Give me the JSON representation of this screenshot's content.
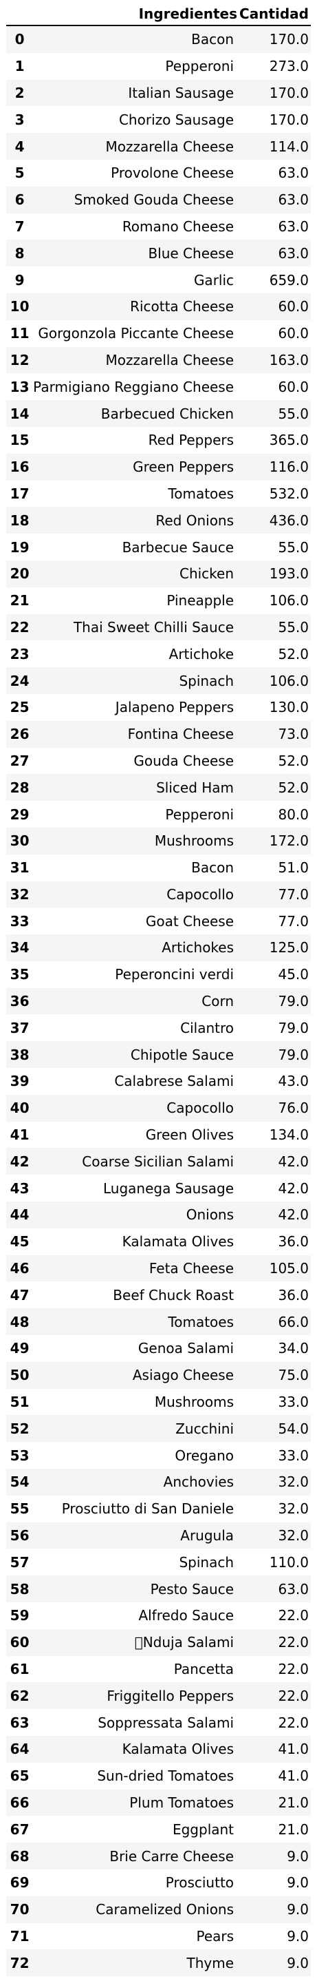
{
  "table": {
    "columns": [
      "Ingredientes",
      "Cantidad"
    ],
    "rows": [
      {
        "index": "0",
        "ingrediente": "Bacon",
        "cantidad": "170.0"
      },
      {
        "index": "1",
        "ingrediente": "Pepperoni",
        "cantidad": "273.0"
      },
      {
        "index": "2",
        "ingrediente": "Italian Sausage",
        "cantidad": "170.0"
      },
      {
        "index": "3",
        "ingrediente": "Chorizo Sausage",
        "cantidad": "170.0"
      },
      {
        "index": "4",
        "ingrediente": "Mozzarella Cheese",
        "cantidad": "114.0"
      },
      {
        "index": "5",
        "ingrediente": "Provolone Cheese",
        "cantidad": "63.0"
      },
      {
        "index": "6",
        "ingrediente": "Smoked Gouda Cheese",
        "cantidad": "63.0"
      },
      {
        "index": "7",
        "ingrediente": "Romano Cheese",
        "cantidad": "63.0"
      },
      {
        "index": "8",
        "ingrediente": "Blue Cheese",
        "cantidad": "63.0"
      },
      {
        "index": "9",
        "ingrediente": "Garlic",
        "cantidad": "659.0"
      },
      {
        "index": "10",
        "ingrediente": "Ricotta Cheese",
        "cantidad": "60.0"
      },
      {
        "index": "11",
        "ingrediente": "Gorgonzola Piccante Cheese",
        "cantidad": "60.0"
      },
      {
        "index": "12",
        "ingrediente": "Mozzarella Cheese",
        "cantidad": "163.0"
      },
      {
        "index": "13",
        "ingrediente": "Parmigiano Reggiano Cheese",
        "cantidad": "60.0"
      },
      {
        "index": "14",
        "ingrediente": "Barbecued Chicken",
        "cantidad": "55.0"
      },
      {
        "index": "15",
        "ingrediente": "Red Peppers",
        "cantidad": "365.0"
      },
      {
        "index": "16",
        "ingrediente": "Green Peppers",
        "cantidad": "116.0"
      },
      {
        "index": "17",
        "ingrediente": "Tomatoes",
        "cantidad": "532.0"
      },
      {
        "index": "18",
        "ingrediente": "Red Onions",
        "cantidad": "436.0"
      },
      {
        "index": "19",
        "ingrediente": "Barbecue Sauce",
        "cantidad": "55.0"
      },
      {
        "index": "20",
        "ingrediente": "Chicken",
        "cantidad": "193.0"
      },
      {
        "index": "21",
        "ingrediente": "Pineapple",
        "cantidad": "106.0"
      },
      {
        "index": "22",
        "ingrediente": "Thai Sweet Chilli Sauce",
        "cantidad": "55.0"
      },
      {
        "index": "23",
        "ingrediente": "Artichoke",
        "cantidad": "52.0"
      },
      {
        "index": "24",
        "ingrediente": "Spinach",
        "cantidad": "106.0"
      },
      {
        "index": "25",
        "ingrediente": "Jalapeno Peppers",
        "cantidad": "130.0"
      },
      {
        "index": "26",
        "ingrediente": "Fontina Cheese",
        "cantidad": "73.0"
      },
      {
        "index": "27",
        "ingrediente": "Gouda Cheese",
        "cantidad": "52.0"
      },
      {
        "index": "28",
        "ingrediente": "Sliced Ham",
        "cantidad": "52.0"
      },
      {
        "index": "29",
        "ingrediente": "Pepperoni",
        "cantidad": "80.0"
      },
      {
        "index": "30",
        "ingrediente": "Mushrooms",
        "cantidad": "172.0"
      },
      {
        "index": "31",
        "ingrediente": "Bacon",
        "cantidad": "51.0"
      },
      {
        "index": "32",
        "ingrediente": "Capocollo",
        "cantidad": "77.0"
      },
      {
        "index": "33",
        "ingrediente": "Goat Cheese",
        "cantidad": "77.0"
      },
      {
        "index": "34",
        "ingrediente": "Artichokes",
        "cantidad": "125.0"
      },
      {
        "index": "35",
        "ingrediente": "Peperoncini verdi",
        "cantidad": "45.0"
      },
      {
        "index": "36",
        "ingrediente": "Corn",
        "cantidad": "79.0"
      },
      {
        "index": "37",
        "ingrediente": "Cilantro",
        "cantidad": "79.0"
      },
      {
        "index": "38",
        "ingrediente": "Chipotle Sauce",
        "cantidad": "79.0"
      },
      {
        "index": "39",
        "ingrediente": "Calabrese Salami",
        "cantidad": "43.0"
      },
      {
        "index": "40",
        "ingrediente": "Capocollo",
        "cantidad": "76.0"
      },
      {
        "index": "41",
        "ingrediente": "Green Olives",
        "cantidad": "134.0"
      },
      {
        "index": "42",
        "ingrediente": "Coarse Sicilian Salami",
        "cantidad": "42.0"
      },
      {
        "index": "43",
        "ingrediente": "Luganega Sausage",
        "cantidad": "42.0"
      },
      {
        "index": "44",
        "ingrediente": "Onions",
        "cantidad": "42.0"
      },
      {
        "index": "45",
        "ingrediente": "Kalamata Olives",
        "cantidad": "36.0"
      },
      {
        "index": "46",
        "ingrediente": "Feta Cheese",
        "cantidad": "105.0"
      },
      {
        "index": "47",
        "ingrediente": "Beef Chuck Roast",
        "cantidad": "36.0"
      },
      {
        "index": "48",
        "ingrediente": "Tomatoes",
        "cantidad": "66.0"
      },
      {
        "index": "49",
        "ingrediente": "Genoa Salami",
        "cantidad": "34.0"
      },
      {
        "index": "50",
        "ingrediente": "Asiago Cheese",
        "cantidad": "75.0"
      },
      {
        "index": "51",
        "ingrediente": "Mushrooms",
        "cantidad": "33.0"
      },
      {
        "index": "52",
        "ingrediente": "Zucchini",
        "cantidad": "54.0"
      },
      {
        "index": "53",
        "ingrediente": "Oregano",
        "cantidad": "33.0"
      },
      {
        "index": "54",
        "ingrediente": "Anchovies",
        "cantidad": "32.0"
      },
      {
        "index": "55",
        "ingrediente": "Prosciutto di San Daniele",
        "cantidad": "32.0"
      },
      {
        "index": "56",
        "ingrediente": "Arugula",
        "cantidad": "32.0"
      },
      {
        "index": "57",
        "ingrediente": "Spinach",
        "cantidad": "110.0"
      },
      {
        "index": "58",
        "ingrediente": "Pesto Sauce",
        "cantidad": "63.0"
      },
      {
        "index": "59",
        "ingrediente": "Alfredo Sauce",
        "cantidad": "22.0"
      },
      {
        "index": "60",
        "ingrediente": "\u0000Nduja Salami",
        "cantidad": "22.0"
      },
      {
        "index": "61",
        "ingrediente": "Pancetta",
        "cantidad": "22.0"
      },
      {
        "index": "62",
        "ingrediente": "Friggitello Peppers",
        "cantidad": "22.0"
      },
      {
        "index": "63",
        "ingrediente": "Soppressata Salami",
        "cantidad": "22.0"
      },
      {
        "index": "64",
        "ingrediente": "Kalamata Olives",
        "cantidad": "41.0"
      },
      {
        "index": "65",
        "ingrediente": "Sun-dried Tomatoes",
        "cantidad": "41.0"
      },
      {
        "index": "66",
        "ingrediente": "Plum Tomatoes",
        "cantidad": "21.0"
      },
      {
        "index": "67",
        "ingrediente": "Eggplant",
        "cantidad": "21.0"
      },
      {
        "index": "68",
        "ingrediente": "Brie Carre Cheese",
        "cantidad": "9.0"
      },
      {
        "index": "69",
        "ingrediente": "Prosciutto",
        "cantidad": "9.0"
      },
      {
        "index": "70",
        "ingrediente": "Caramelized Onions",
        "cantidad": "9.0"
      },
      {
        "index": "71",
        "ingrediente": "Pears",
        "cantidad": "9.0"
      },
      {
        "index": "72",
        "ingrediente": "Thyme",
        "cantidad": "9.0"
      }
    ]
  }
}
